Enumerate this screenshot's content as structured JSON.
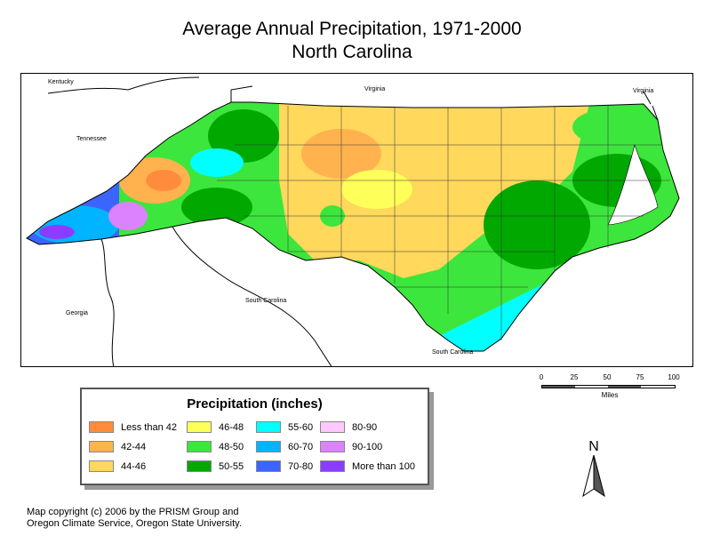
{
  "title": {
    "line1": "Average Annual Precipitation, 1971-2000",
    "line2": "North Carolina"
  },
  "map": {
    "neighbor_labels": [
      "Kentucky",
      "Virginia",
      "Virginia",
      "Tennessee",
      "South Carolina",
      "Georgia",
      "South Carolina"
    ]
  },
  "legend": {
    "title": "Precipitation (inches)",
    "classes": [
      {
        "label": "Less than 42",
        "color": "#ff8c3c"
      },
      {
        "label": "42-44",
        "color": "#ffb24e"
      },
      {
        "label": "44-46",
        "color": "#ffd85c"
      },
      {
        "label": "46-48",
        "color": "#ffff5a"
      },
      {
        "label": "48-50",
        "color": "#3ce63c"
      },
      {
        "label": "50-55",
        "color": "#00a800"
      },
      {
        "label": "55-60",
        "color": "#00ffff"
      },
      {
        "label": "60-70",
        "color": "#00b4ff"
      },
      {
        "label": "70-80",
        "color": "#3c64ff"
      },
      {
        "label": "80-90",
        "color": "#ffc8ff"
      },
      {
        "label": "90-100",
        "color": "#dc82ff"
      },
      {
        "label": "More than 100",
        "color": "#8c3cff"
      }
    ]
  },
  "scale_bar": {
    "ticks": [
      "0",
      "25",
      "50",
      "75",
      "100"
    ],
    "units": "Miles"
  },
  "north_arrow": {
    "label": "N",
    "icon": "north-arrow-icon"
  },
  "credit": {
    "line1": "Map copyright (c) 2006 by the PRISM Group and",
    "line2": "Oregon Climate Service, Oregon State University."
  }
}
